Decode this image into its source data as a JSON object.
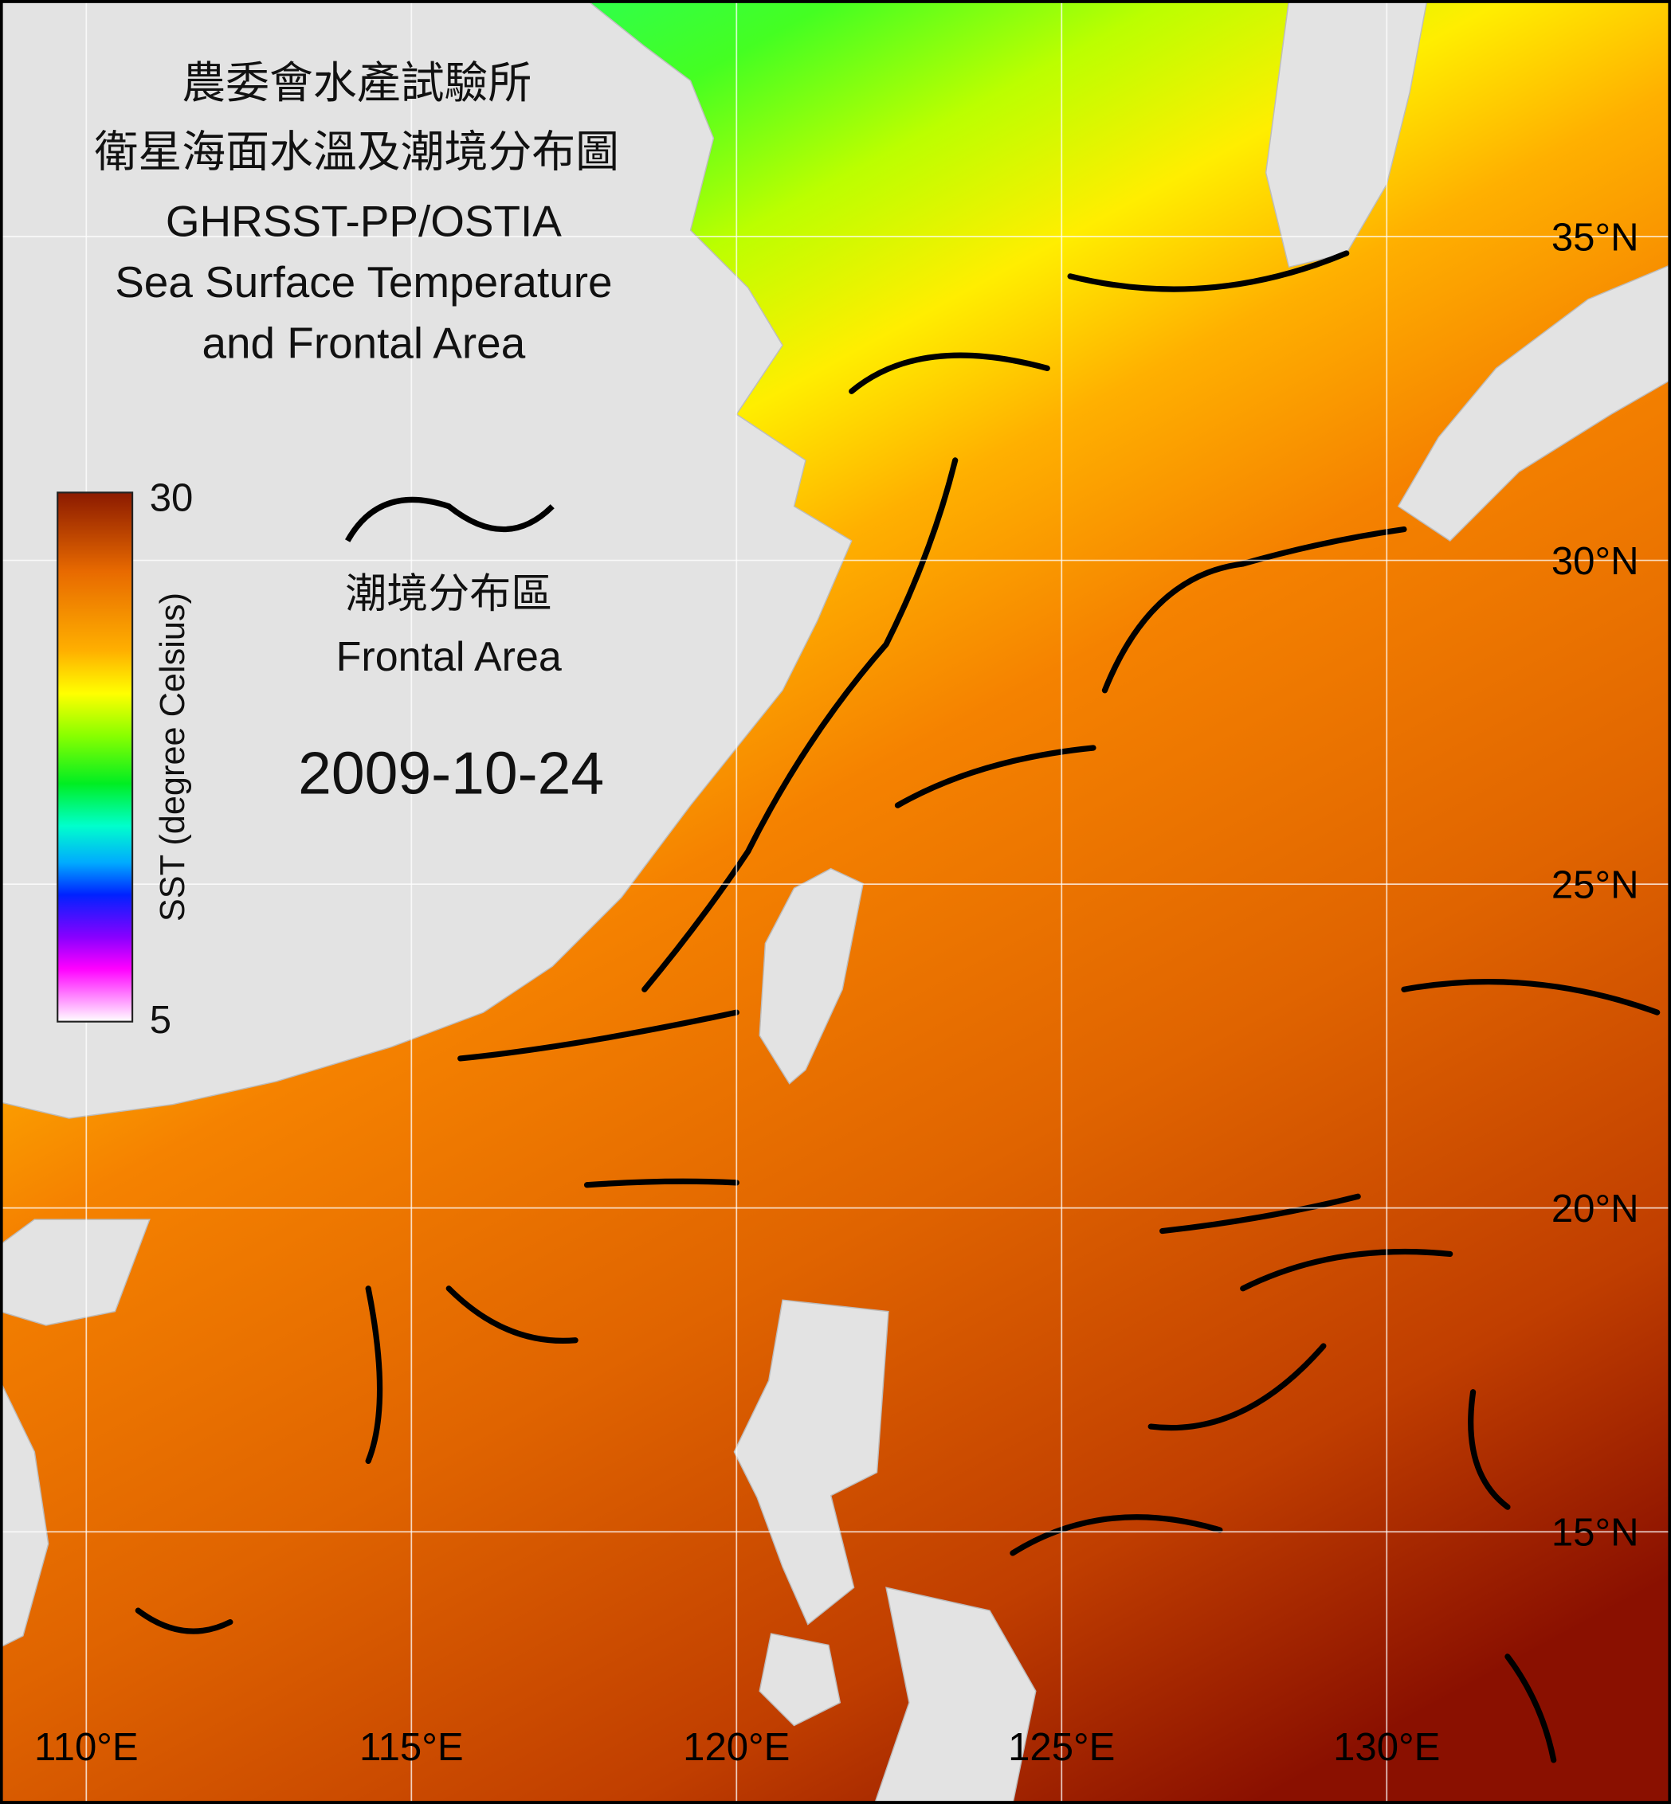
{
  "header": {
    "title_lines": [
      "農委會水產試驗所",
      "衛星海面水溫及潮境分布圖",
      "GHRSST-PP/OSTIA",
      "Sea Surface Temperature",
      "and Frontal Area"
    ]
  },
  "colorbar": {
    "ticks": [
      30,
      5
    ],
    "label": "SST (degree Celsius)"
  },
  "legend": {
    "label_zh": "潮境分布區",
    "label_en": "Frontal Area"
  },
  "date": "2009-10-24",
  "lat_ticks": [
    {
      "value": 35,
      "label": "35°N"
    },
    {
      "value": 30,
      "label": "30°N"
    },
    {
      "value": 25,
      "label": "25°N"
    },
    {
      "value": 20,
      "label": "20°N"
    },
    {
      "value": 15,
      "label": "15°N"
    }
  ],
  "lon_ticks": [
    {
      "value": 110,
      "label": "110°E"
    },
    {
      "value": 115,
      "label": "115°E"
    },
    {
      "value": 120,
      "label": "120°E"
    },
    {
      "value": 125,
      "label": "125°E"
    },
    {
      "value": 130,
      "label": "130°E"
    }
  ]
}
